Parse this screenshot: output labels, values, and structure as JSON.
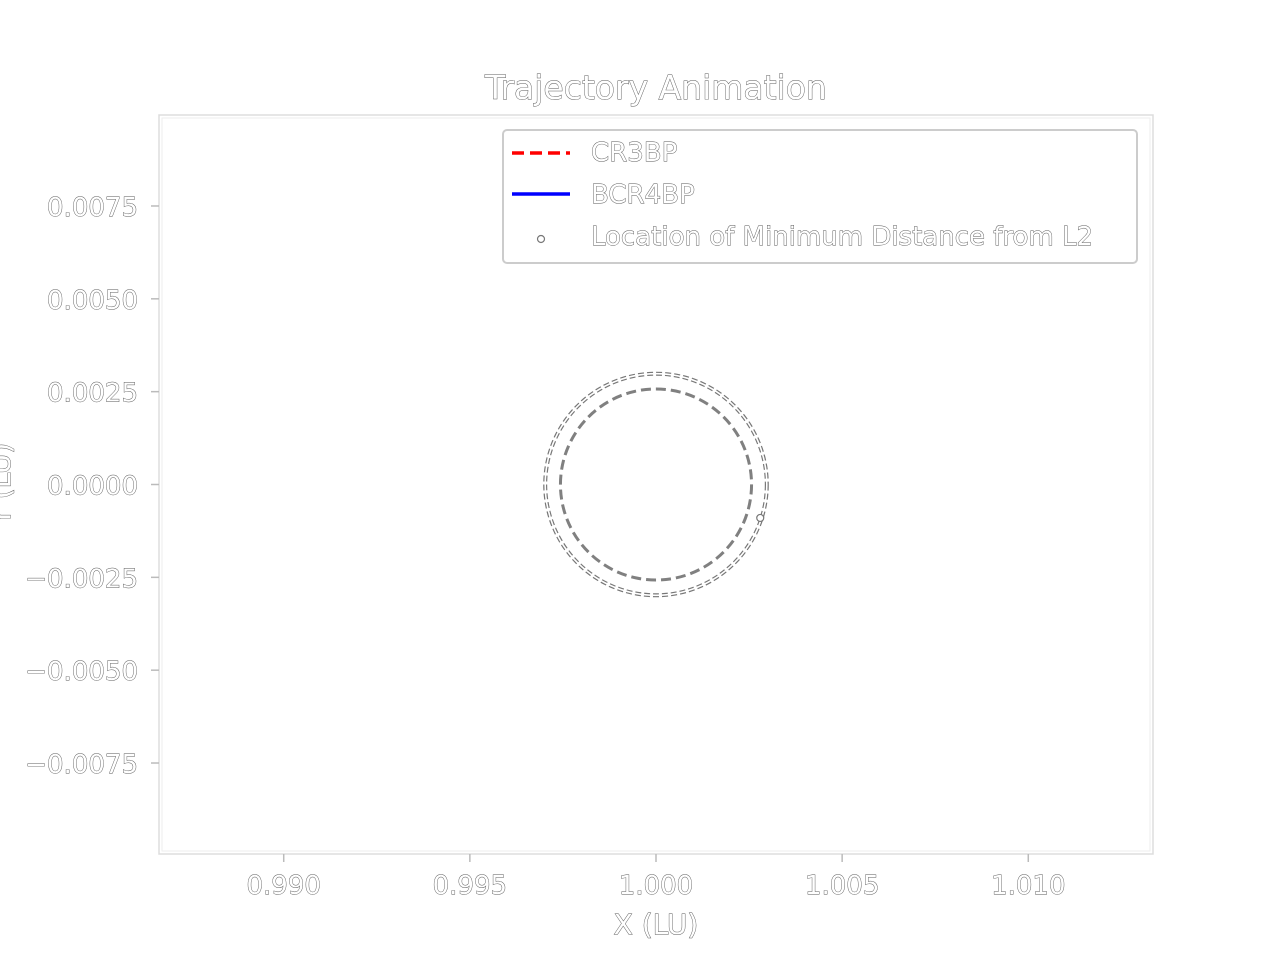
{
  "chart_data": {
    "type": "line",
    "title": "Trajectory Animation",
    "xlabel": "X (LU)",
    "ylabel": "Y (LU)",
    "xlim": [
      0.98665,
      1.01335
    ],
    "ylim": [
      -0.00995,
      0.00995
    ],
    "xticks": [
      0.99,
      0.995,
      1.0,
      1.005,
      1.01
    ],
    "xtick_labels": [
      "0.990",
      "0.995",
      "1.000",
      "1.005",
      "1.010"
    ],
    "yticks": [
      0.0075,
      0.005,
      0.0025,
      0.0,
      -0.0025,
      -0.005,
      -0.0075
    ],
    "ytick_labels": [
      "0.0075",
      "0.0050",
      "0.0025",
      "0.0000",
      "−0.0025",
      "−0.0050",
      "−0.0075"
    ],
    "grid": false,
    "legend_position": "top-right",
    "series": [
      {
        "name": "CR3BP",
        "style": "dashed",
        "color": "#ff0000"
      },
      {
        "name": "BCR4BP",
        "style": "solid",
        "color": "#0000ff"
      },
      {
        "name": "Location of Minimum Distance from L2",
        "style": "marker",
        "color": "#ffffff"
      }
    ],
    "reference_circles": [
      {
        "center": [
          1.0,
          0.0
        ],
        "radius": 0.00257,
        "style": "dashed",
        "color": "#808080"
      },
      {
        "center": [
          1.0,
          0.0
        ],
        "radius": 0.00298,
        "style": "dashed",
        "color": "#808080"
      }
    ],
    "minimum_point": {
      "x": 1.0028,
      "y": -0.0009
    }
  }
}
